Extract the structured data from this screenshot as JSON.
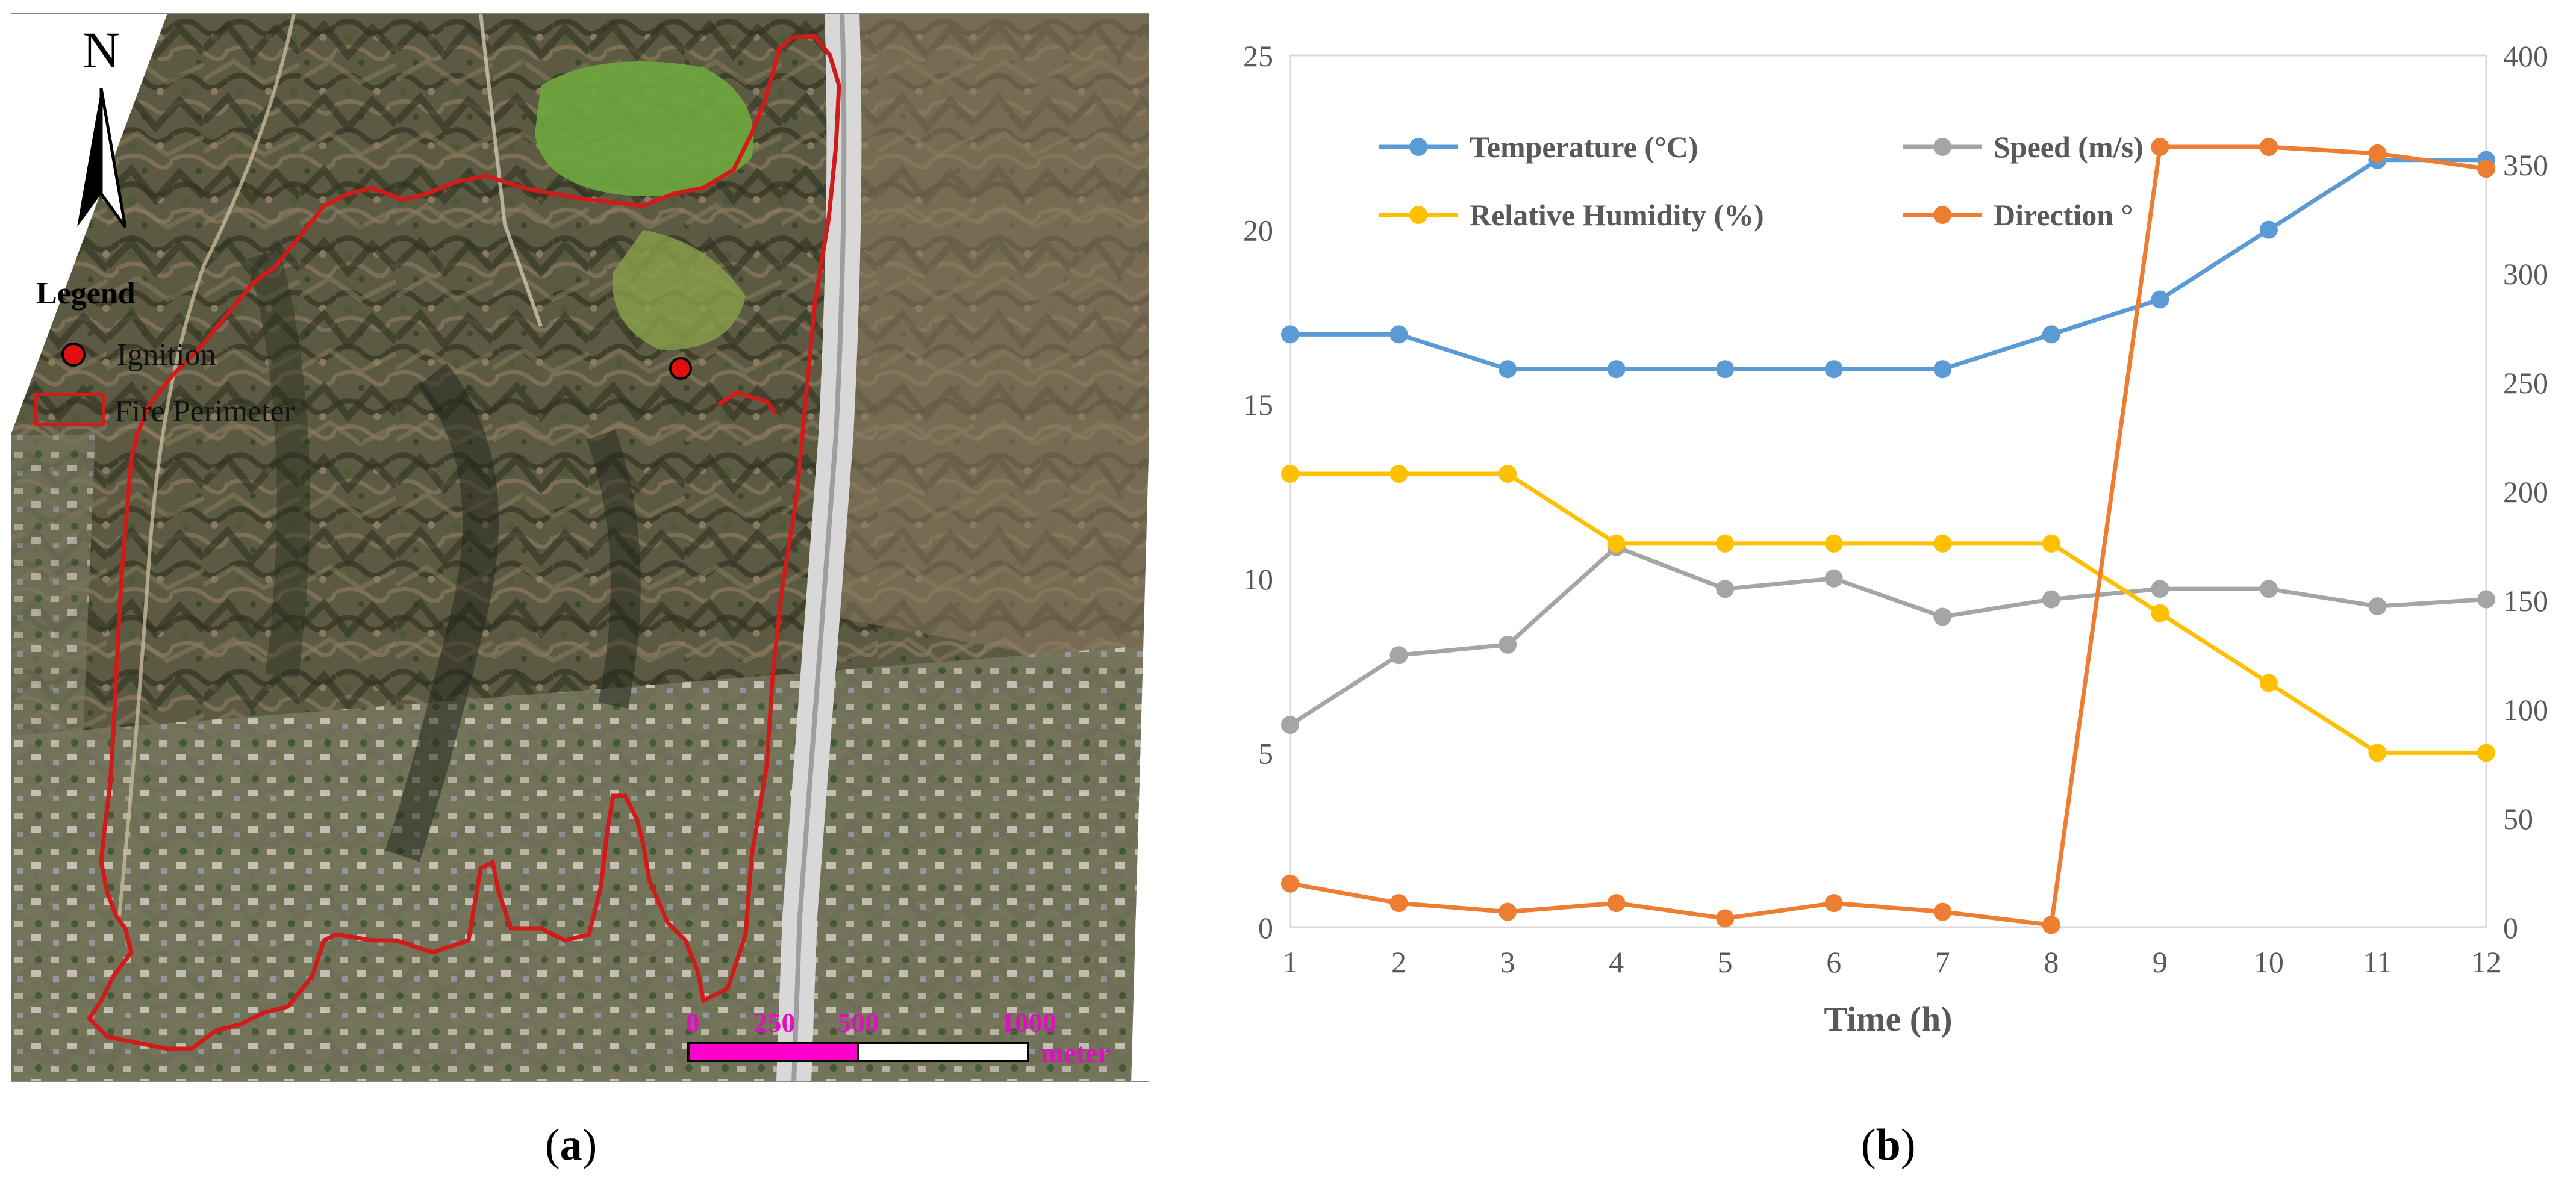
{
  "panel_a": {
    "north_label": "N",
    "legend_title": "Legend",
    "legend_ignition": "Ignition",
    "legend_perimeter": "Fire Perimeter",
    "scale_labels": [
      "0",
      "250",
      "500",
      "1000"
    ],
    "scale_unit": "meter",
    "colors": {
      "perimeter": "#d11a1a",
      "ignition": "#e01010",
      "scalebar": "#ff00cc"
    }
  },
  "captions": {
    "a": "a",
    "b": "b"
  },
  "chart_data": {
    "type": "line",
    "x": [
      1,
      2,
      3,
      4,
      5,
      6,
      7,
      8,
      9,
      10,
      11,
      12
    ],
    "xlabel": "Time (h)",
    "ylabel": "",
    "y2label": "",
    "ylim": [
      0,
      25
    ],
    "y2lim": [
      0,
      400
    ],
    "yticks": [
      0,
      5,
      10,
      15,
      20,
      25
    ],
    "y2ticks": [
      0,
      50,
      100,
      150,
      200,
      250,
      300,
      350,
      400
    ],
    "grid": false,
    "legend_position": "top",
    "series": [
      {
        "name": "Temperature (°C)",
        "axis": "left",
        "color": "#5b9bd5",
        "values": [
          17,
          17,
          16,
          16,
          16,
          16,
          16,
          17,
          18,
          20,
          22,
          22
        ]
      },
      {
        "name": "Speed (m/s)",
        "axis": "left",
        "color": "#a5a5a5",
        "values": [
          5.8,
          7.8,
          8.1,
          10.9,
          9.7,
          10.0,
          8.9,
          9.4,
          9.7,
          9.7,
          9.2,
          9.4
        ]
      },
      {
        "name": "Relative Humidity (%)",
        "axis": "left",
        "color": "#ffc000",
        "values": [
          13,
          13,
          13,
          11,
          11,
          11,
          11,
          11,
          9,
          7,
          5,
          5
        ]
      },
      {
        "name": "Direction °",
        "axis": "right",
        "color": "#ed7d31",
        "values": [
          20,
          11,
          7,
          11,
          4,
          11,
          7,
          1,
          358,
          358,
          355,
          348
        ]
      }
    ]
  }
}
